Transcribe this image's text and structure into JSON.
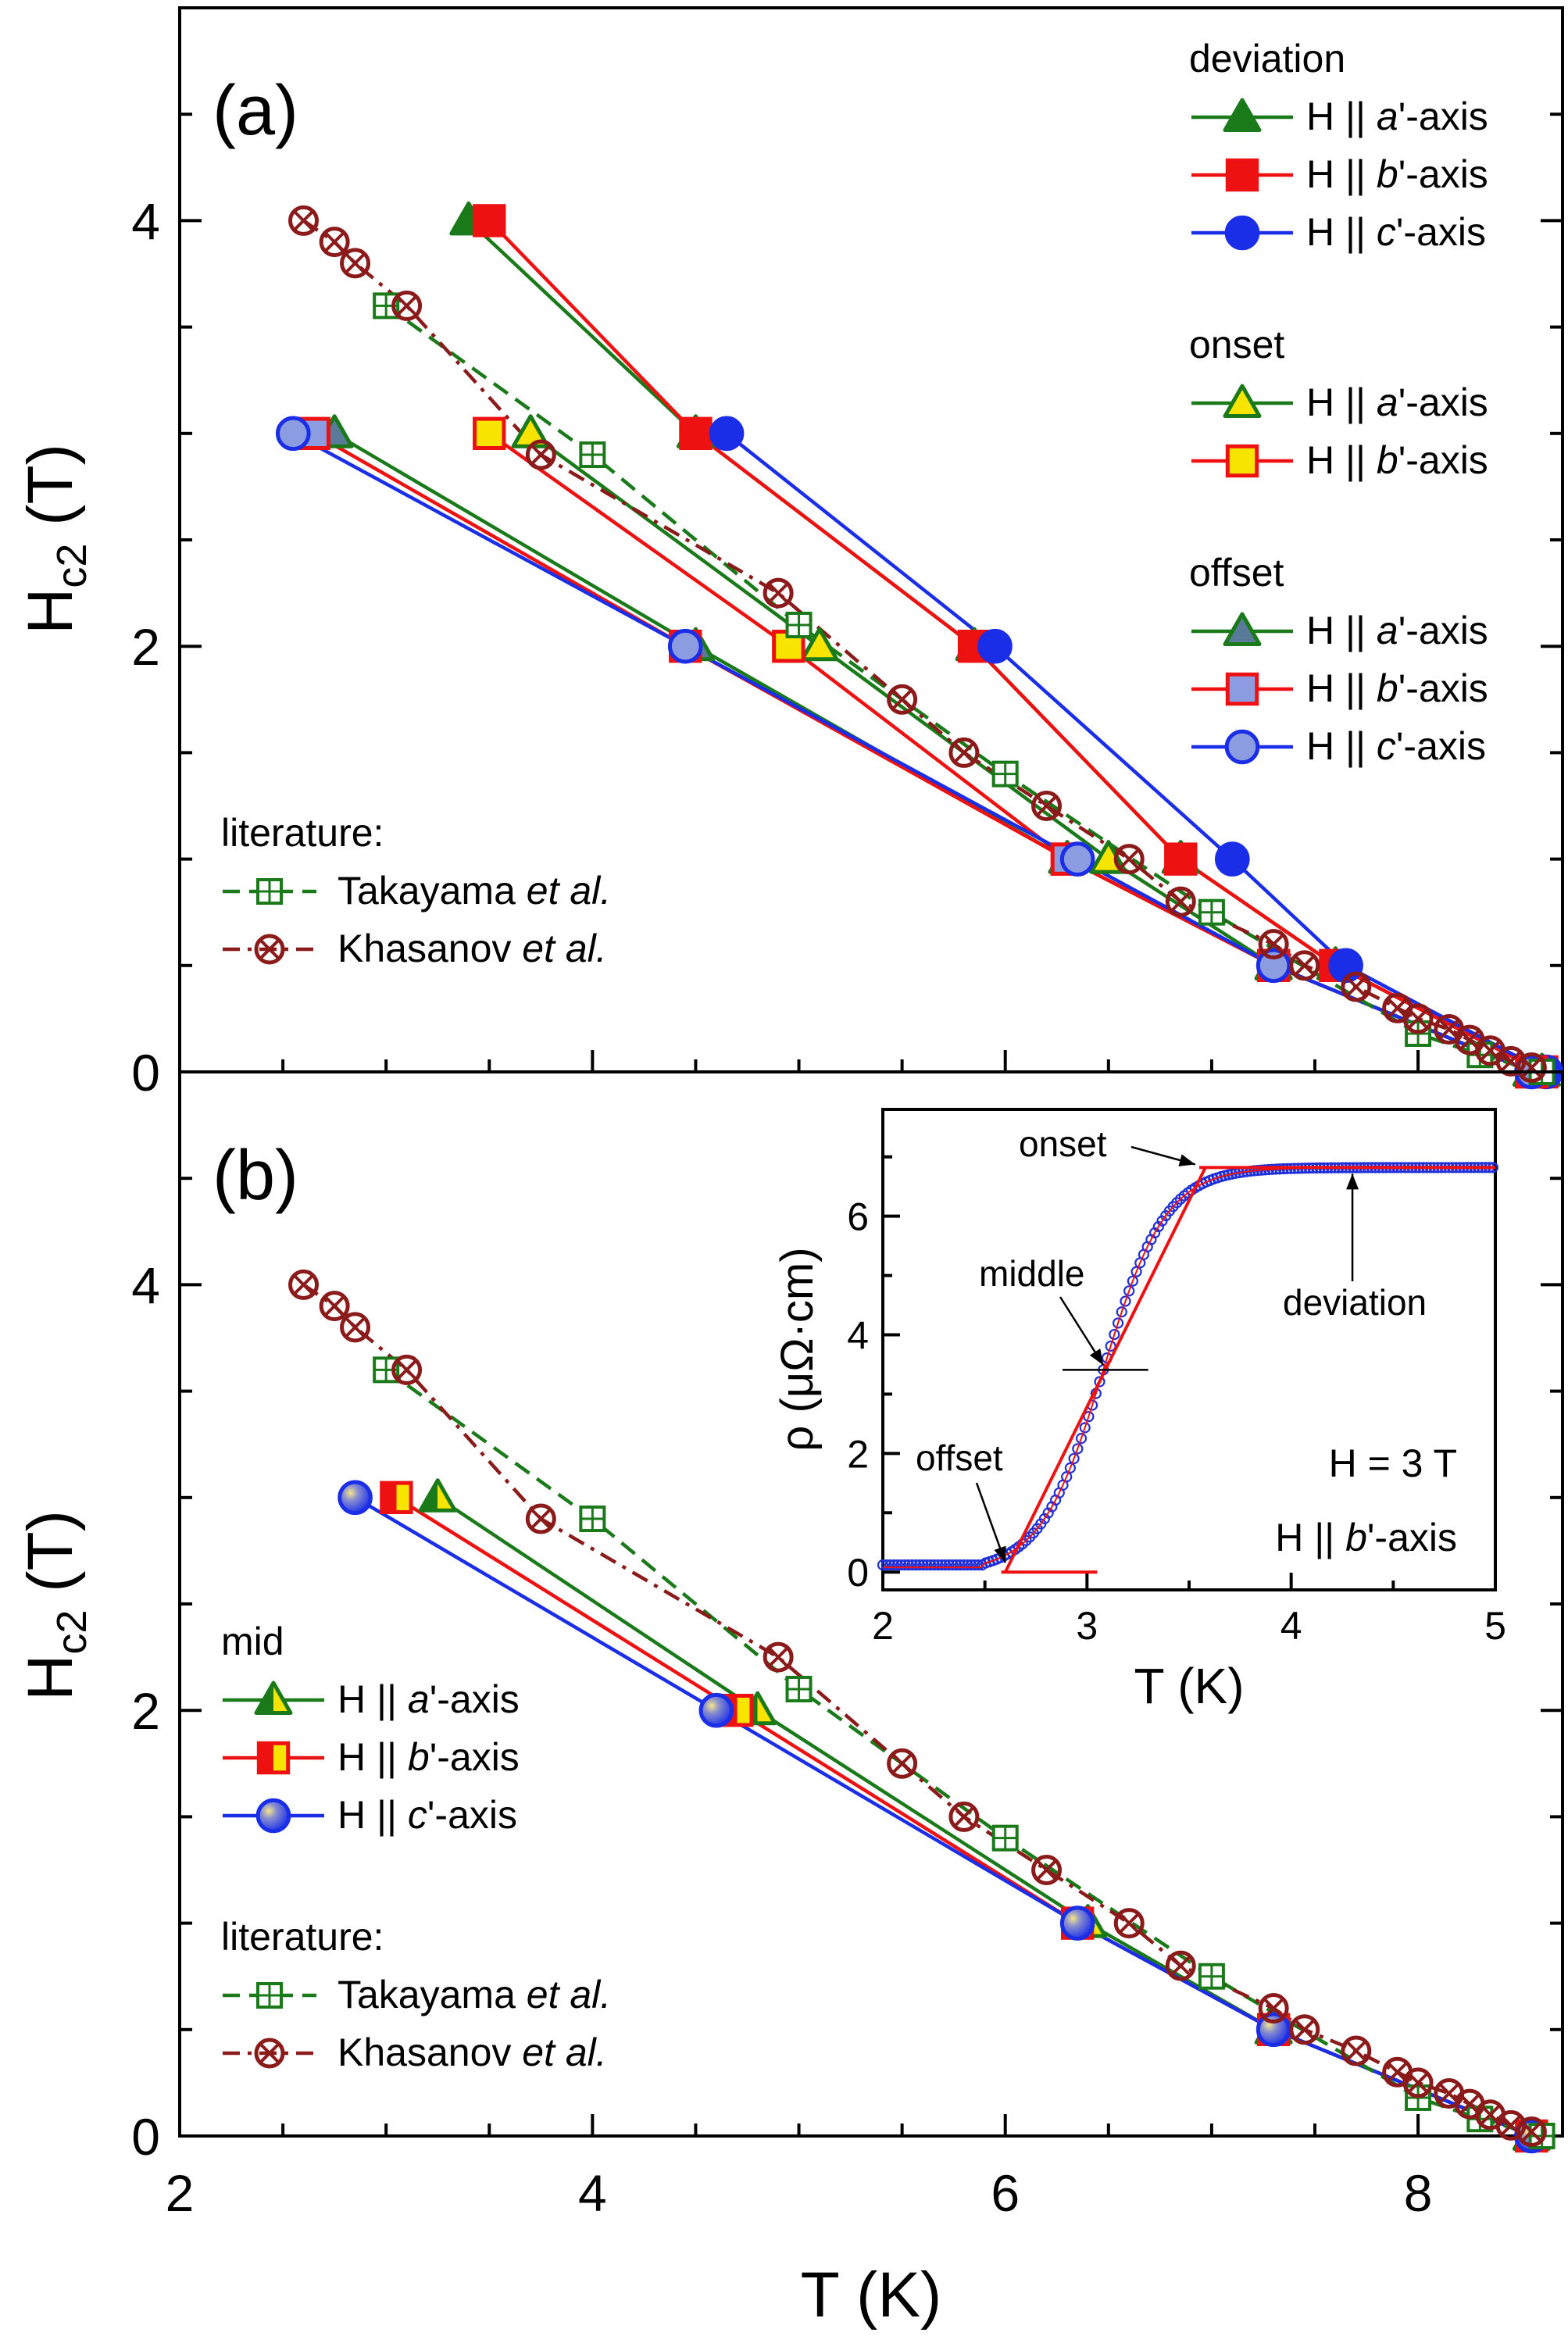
{
  "figure": {
    "xlabel": "T (K)",
    "ylabel_main": "H",
    "ylabel_sub": "c2",
    "ylabel_unit": " (T)",
    "x_ticks": [
      "2",
      "4",
      "6",
      "8"
    ],
    "y_ticks": [
      "0",
      "2",
      "4"
    ]
  },
  "colors": {
    "green": "#1a7a1a",
    "red": "#ee1111",
    "blue": "#1a2ee8",
    "darkred": "#8b1a1a",
    "yellow": "#f7e400",
    "lightblue": "#8c9ce0",
    "steel": "#5a7a9a"
  },
  "chart_data": [
    {
      "type": "line",
      "panel_label": "(a)",
      "xlabel": "T (K)",
      "ylabel": "Hc2 (T)",
      "xlim": [
        2,
        8.7
      ],
      "ylim": [
        0,
        5
      ],
      "legend": {
        "groups": [
          {
            "title": "deviation",
            "entries": [
              {
                "text_pre": "H || ",
                "text_it": "a",
                "text_post": "'-axis",
                "series": "dev_a"
              },
              {
                "text_pre": "H || ",
                "text_it": "b",
                "text_post": "'-axis",
                "series": "dev_b"
              },
              {
                "text_pre": "H || ",
                "text_it": "c",
                "text_post": "'-axis",
                "series": "dev_c"
              }
            ]
          },
          {
            "title": "onset",
            "entries": [
              {
                "text_pre": "H || ",
                "text_it": "a",
                "text_post": "'-axis",
                "series": "on_a"
              },
              {
                "text_pre": "H || ",
                "text_it": "b",
                "text_post": "'-axis",
                "series": "on_b"
              }
            ]
          },
          {
            "title": "offset",
            "entries": [
              {
                "text_pre": "H || ",
                "text_it": "a",
                "text_post": "'-axis",
                "series": "off_a"
              },
              {
                "text_pre": "H || ",
                "text_it": "b",
                "text_post": "'-axis",
                "series": "off_b"
              },
              {
                "text_pre": "H || ",
                "text_it": "c",
                "text_post": "'-axis",
                "series": "off_c"
              }
            ]
          }
        ],
        "literature": {
          "title": "literature:",
          "entries": [
            {
              "text_pre": "Takayama ",
              "text_it": "et al.",
              "series": "tak"
            },
            {
              "text_pre": "Khasanov ",
              "text_it": "et al.",
              "series": "kha"
            }
          ]
        }
      },
      "series": [
        {
          "id": "dev_a",
          "name": "deviation H || a'-axis",
          "marker": "triangle",
          "color": "green",
          "fill": "green",
          "x": [
            3.4,
            4.5,
            5.85,
            6.85,
            7.6,
            8.6
          ],
          "y": [
            4.0,
            3.0,
            2.0,
            1.0,
            0.5,
            0.0
          ]
        },
        {
          "id": "dev_b",
          "name": "deviation H || b'-axis",
          "marker": "square",
          "color": "red",
          "fill": "red",
          "x": [
            3.5,
            4.5,
            5.85,
            6.85,
            7.6,
            8.6
          ],
          "y": [
            4.0,
            3.0,
            2.0,
            1.0,
            0.5,
            0.0
          ]
        },
        {
          "id": "dev_c",
          "name": "deviation H || c'-axis",
          "marker": "circle",
          "color": "blue",
          "fill": "blue",
          "x": [
            4.65,
            5.95,
            7.1,
            7.65,
            8.62
          ],
          "y": [
            3.0,
            2.0,
            1.0,
            0.5,
            0.0
          ]
        },
        {
          "id": "on_a",
          "name": "onset H || a'-axis",
          "marker": "triangle",
          "color": "green",
          "fill": "yellow",
          "x": [
            3.7,
            5.1,
            6.5,
            7.3,
            8.55
          ],
          "y": [
            3.0,
            2.0,
            1.0,
            0.5,
            0.0
          ]
        },
        {
          "id": "on_b",
          "name": "onset H || b'-axis",
          "marker": "square",
          "color": "red",
          "fill": "yellow",
          "x": [
            3.5,
            4.95,
            6.3,
            7.3,
            8.55
          ],
          "y": [
            3.0,
            2.0,
            1.0,
            0.5,
            0.0
          ]
        },
        {
          "id": "off_a",
          "name": "offset H || a'-axis",
          "marker": "triangle",
          "color": "green",
          "fill": "steel",
          "x": [
            2.75,
            4.5,
            6.3,
            7.3,
            8.55
          ],
          "y": [
            3.0,
            2.0,
            1.0,
            0.5,
            0.0
          ]
        },
        {
          "id": "off_b",
          "name": "offset H || b'-axis",
          "marker": "square",
          "color": "red",
          "fill": "lightblue",
          "x": [
            2.65,
            4.45,
            6.3,
            7.3,
            8.55
          ],
          "y": [
            3.0,
            2.0,
            1.0,
            0.5,
            0.0
          ]
        },
        {
          "id": "off_c",
          "name": "offset H || c'-axis",
          "marker": "circle",
          "color": "blue",
          "fill": "lightblue",
          "x": [
            2.55,
            4.45,
            6.35,
            7.3,
            8.55
          ],
          "y": [
            3.0,
            2.0,
            1.0,
            0.5,
            0.0
          ]
        },
        {
          "id": "tak",
          "name": "Takayama et al.",
          "marker": "boxplus",
          "color": "green",
          "fill": "none",
          "dash": "dash",
          "x": [
            3.0,
            4.0,
            5.0,
            6.0,
            7.0,
            8.0,
            8.3,
            8.6
          ],
          "y": [
            3.6,
            2.9,
            2.1,
            1.4,
            0.75,
            0.18,
            0.08,
            0.0
          ]
        },
        {
          "id": "kha",
          "name": "Khasanov et al.",
          "marker": "circlex",
          "color": "darkred",
          "fill": "none",
          "dash": "dashdot",
          "x": [
            2.6,
            2.75,
            2.85,
            3.1,
            3.75,
            4.9,
            5.5,
            5.8,
            6.2,
            6.6,
            6.85,
            7.3,
            7.45,
            7.7,
            7.9,
            8.0,
            8.15,
            8.25,
            8.35,
            8.45,
            8.55
          ],
          "y": [
            4.0,
            3.9,
            3.8,
            3.6,
            2.9,
            2.25,
            1.75,
            1.5,
            1.25,
            1.0,
            0.8,
            0.6,
            0.5,
            0.4,
            0.3,
            0.25,
            0.2,
            0.15,
            0.1,
            0.05,
            0.02
          ]
        }
      ]
    },
    {
      "type": "line",
      "panel_label": "(b)",
      "xlabel": "T (K)",
      "ylabel": "Hc2 (T)",
      "xlim": [
        2,
        8.7
      ],
      "ylim": [
        0,
        5
      ],
      "legend": {
        "groups": [
          {
            "title": "mid",
            "entries": [
              {
                "text_pre": "H || ",
                "text_it": "a",
                "text_post": "'-axis",
                "series": "mid_a"
              },
              {
                "text_pre": "H || ",
                "text_it": "b",
                "text_post": "'-axis",
                "series": "mid_b"
              },
              {
                "text_pre": "H || ",
                "text_it": "c",
                "text_post": "'-axis",
                "series": "mid_c"
              }
            ]
          }
        ],
        "literature": {
          "title": "literature:",
          "entries": [
            {
              "text_pre": "Takayama ",
              "text_it": "et al.",
              "series": "tak"
            },
            {
              "text_pre": "Khasanov ",
              "text_it": "et al.",
              "series": "kha"
            }
          ]
        }
      },
      "series": [
        {
          "id": "mid_a",
          "name": "mid H || a'-axis",
          "marker": "triangle",
          "color": "green",
          "fill": "darkgreen_yellow",
          "x": [
            3.25,
            4.8,
            6.4,
            7.3,
            8.55
          ],
          "y": [
            3.0,
            2.0,
            1.0,
            0.5,
            0.0
          ]
        },
        {
          "id": "mid_b",
          "name": "mid H || b'-axis",
          "marker": "square",
          "color": "red",
          "fill": "halfyellow",
          "x": [
            3.05,
            4.7,
            6.35,
            7.3,
            8.55
          ],
          "y": [
            3.0,
            2.0,
            1.0,
            0.5,
            0.0
          ]
        },
        {
          "id": "mid_c",
          "name": "mid H || c'-axis",
          "marker": "circle",
          "color": "blue",
          "fill": "ball",
          "x": [
            2.85,
            4.6,
            6.35,
            7.3,
            8.55
          ],
          "y": [
            3.0,
            2.0,
            1.0,
            0.5,
            0.0
          ]
        },
        {
          "id": "tak",
          "name": "Takayama et al.",
          "marker": "boxplus",
          "color": "green",
          "fill": "none",
          "dash": "dash",
          "x": [
            3.0,
            4.0,
            5.0,
            6.0,
            7.0,
            8.0,
            8.3,
            8.6
          ],
          "y": [
            3.6,
            2.9,
            2.1,
            1.4,
            0.75,
            0.18,
            0.08,
            0.0
          ]
        },
        {
          "id": "kha",
          "name": "Khasanov et al.",
          "marker": "circlex",
          "color": "darkred",
          "fill": "none",
          "dash": "dashdot",
          "x": [
            2.6,
            2.75,
            2.85,
            3.1,
            3.75,
            4.9,
            5.5,
            5.8,
            6.2,
            6.6,
            6.85,
            7.3,
            7.45,
            7.7,
            7.9,
            8.0,
            8.15,
            8.25,
            8.35,
            8.45,
            8.55
          ],
          "y": [
            4.0,
            3.9,
            3.8,
            3.6,
            2.9,
            2.25,
            1.75,
            1.5,
            1.25,
            1.0,
            0.8,
            0.6,
            0.5,
            0.4,
            0.3,
            0.25,
            0.2,
            0.15,
            0.1,
            0.05,
            0.02
          ]
        }
      ]
    },
    {
      "type": "scatter",
      "panel_label": "inset",
      "xlabel": "T (K)",
      "ylabel": "ρ (μΩ·cm)",
      "xlim": [
        2,
        5
      ],
      "ylim": [
        -0.3,
        7.8
      ],
      "x_ticks": [
        "2",
        "3",
        "4",
        "5"
      ],
      "y_ticks": [
        "0",
        "2",
        "4",
        "6"
      ],
      "field_label": "H = 3 T",
      "dir_pre": "H || ",
      "dir_it": "b",
      "dir_post": "'-axis",
      "annotations": {
        "onset": "onset",
        "middle": "middle",
        "deviation": "deviation",
        "offset": "offset"
      },
      "curve": {
        "T_mid": 3.08,
        "width": 0.26,
        "rho_max": 6.82
      },
      "tangent_lines": {
        "high_plateau": {
          "x": [
            3.55,
            5.0
          ],
          "y": [
            6.82,
            6.82
          ]
        },
        "low_plateau": {
          "x": [
            2.58,
            3.05
          ],
          "y": [
            0.0,
            0.0
          ]
        },
        "steep": {
          "x": [
            2.6,
            3.58
          ],
          "y": [
            0.0,
            6.82
          ]
        },
        "mid_marker": {
          "x": [
            2.88,
            3.3
          ],
          "y": [
            3.41,
            3.41
          ]
        }
      }
    }
  ]
}
